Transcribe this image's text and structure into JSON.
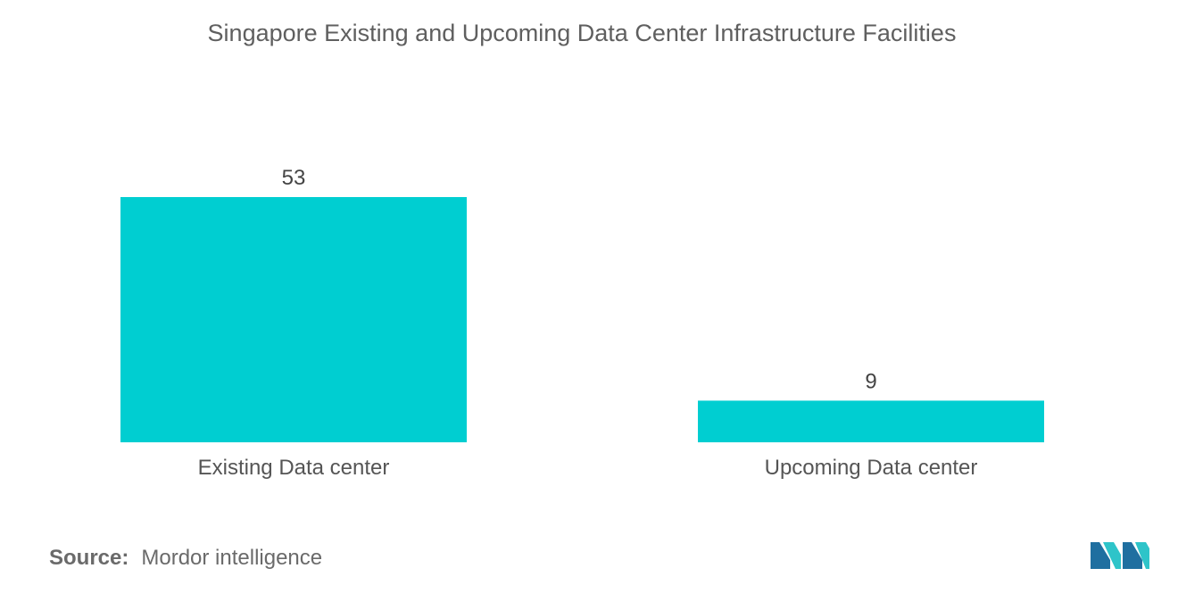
{
  "chart_data": {
    "type": "bar",
    "title": "Singapore  Existing and Upcoming Data Center Infrastructure Facilities",
    "categories": [
      "Existing Data center",
      "Upcoming Data center"
    ],
    "values": [
      53,
      9
    ],
    "xlabel": "",
    "ylabel": "",
    "ylim": [
      0,
      53
    ],
    "grid": false,
    "legend": "none",
    "bar_color": "#00CED1"
  },
  "source": {
    "label": "Source:",
    "value": "Mordor intelligence"
  },
  "colors": {
    "bar": "#00CED1",
    "logo_dark": "#1f6fa0",
    "logo_light": "#2ec4c9"
  }
}
